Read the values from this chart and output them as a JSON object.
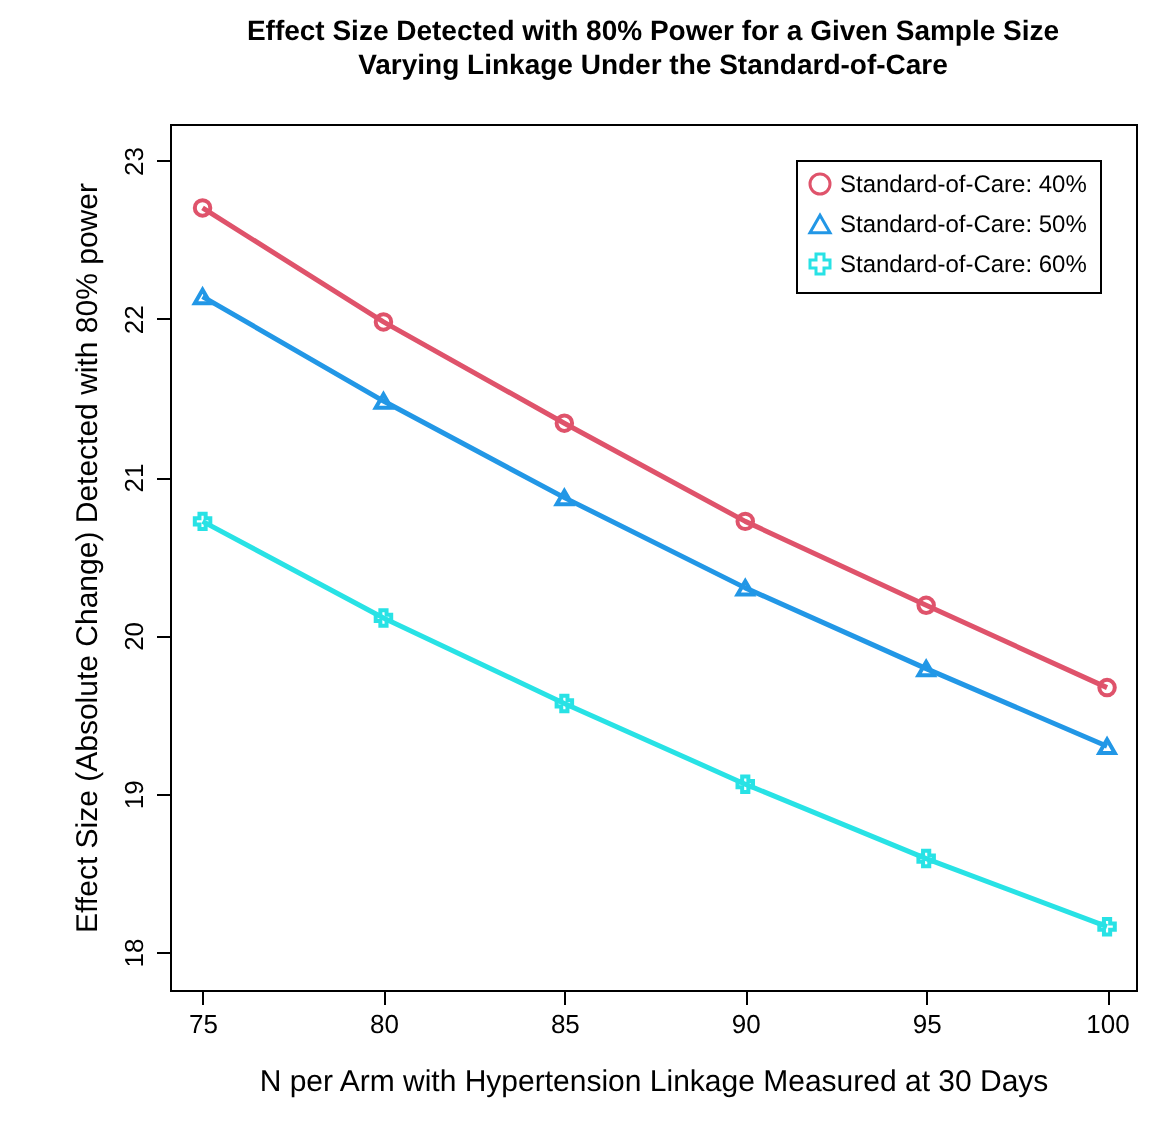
{
  "chart_data": {
    "type": "line",
    "title": "Effect Size Detected with 80% Power for a Given Sample Size\nVarying Linkage Under the Standard-of-Care",
    "xlabel": "N per Arm with Hypertension Linkage Measured at 30 Days",
    "ylabel": "Effect Size (Absolute Change)  Detected with 80% power",
    "x": [
      75,
      80,
      85,
      90,
      95,
      100
    ],
    "series": [
      {
        "name": "Standard-of-Care: 40%",
        "color": "#df536b",
        "marker": "circle",
        "values": [
          22.7,
          21.98,
          21.34,
          20.72,
          20.19,
          19.67
        ]
      },
      {
        "name": "Standard-of-Care: 50%",
        "color": "#2297e6",
        "marker": "triangle",
        "values": [
          22.14,
          21.48,
          20.87,
          20.3,
          19.79,
          19.3
        ]
      },
      {
        "name": "Standard-of-Care: 60%",
        "color": "#28e2e5",
        "marker": "cross",
        "values": [
          20.72,
          20.11,
          19.57,
          19.06,
          18.59,
          18.16
        ]
      }
    ],
    "xlim": [
      74.1,
      100.8
    ],
    "xticks": [
      75,
      80,
      85,
      90,
      95,
      100
    ],
    "ylim": [
      17.76,
      23.23
    ],
    "yticks": [
      18,
      19,
      20,
      21,
      22,
      23
    ],
    "grid": false,
    "legend": "top right",
    "line_style": "solid"
  }
}
